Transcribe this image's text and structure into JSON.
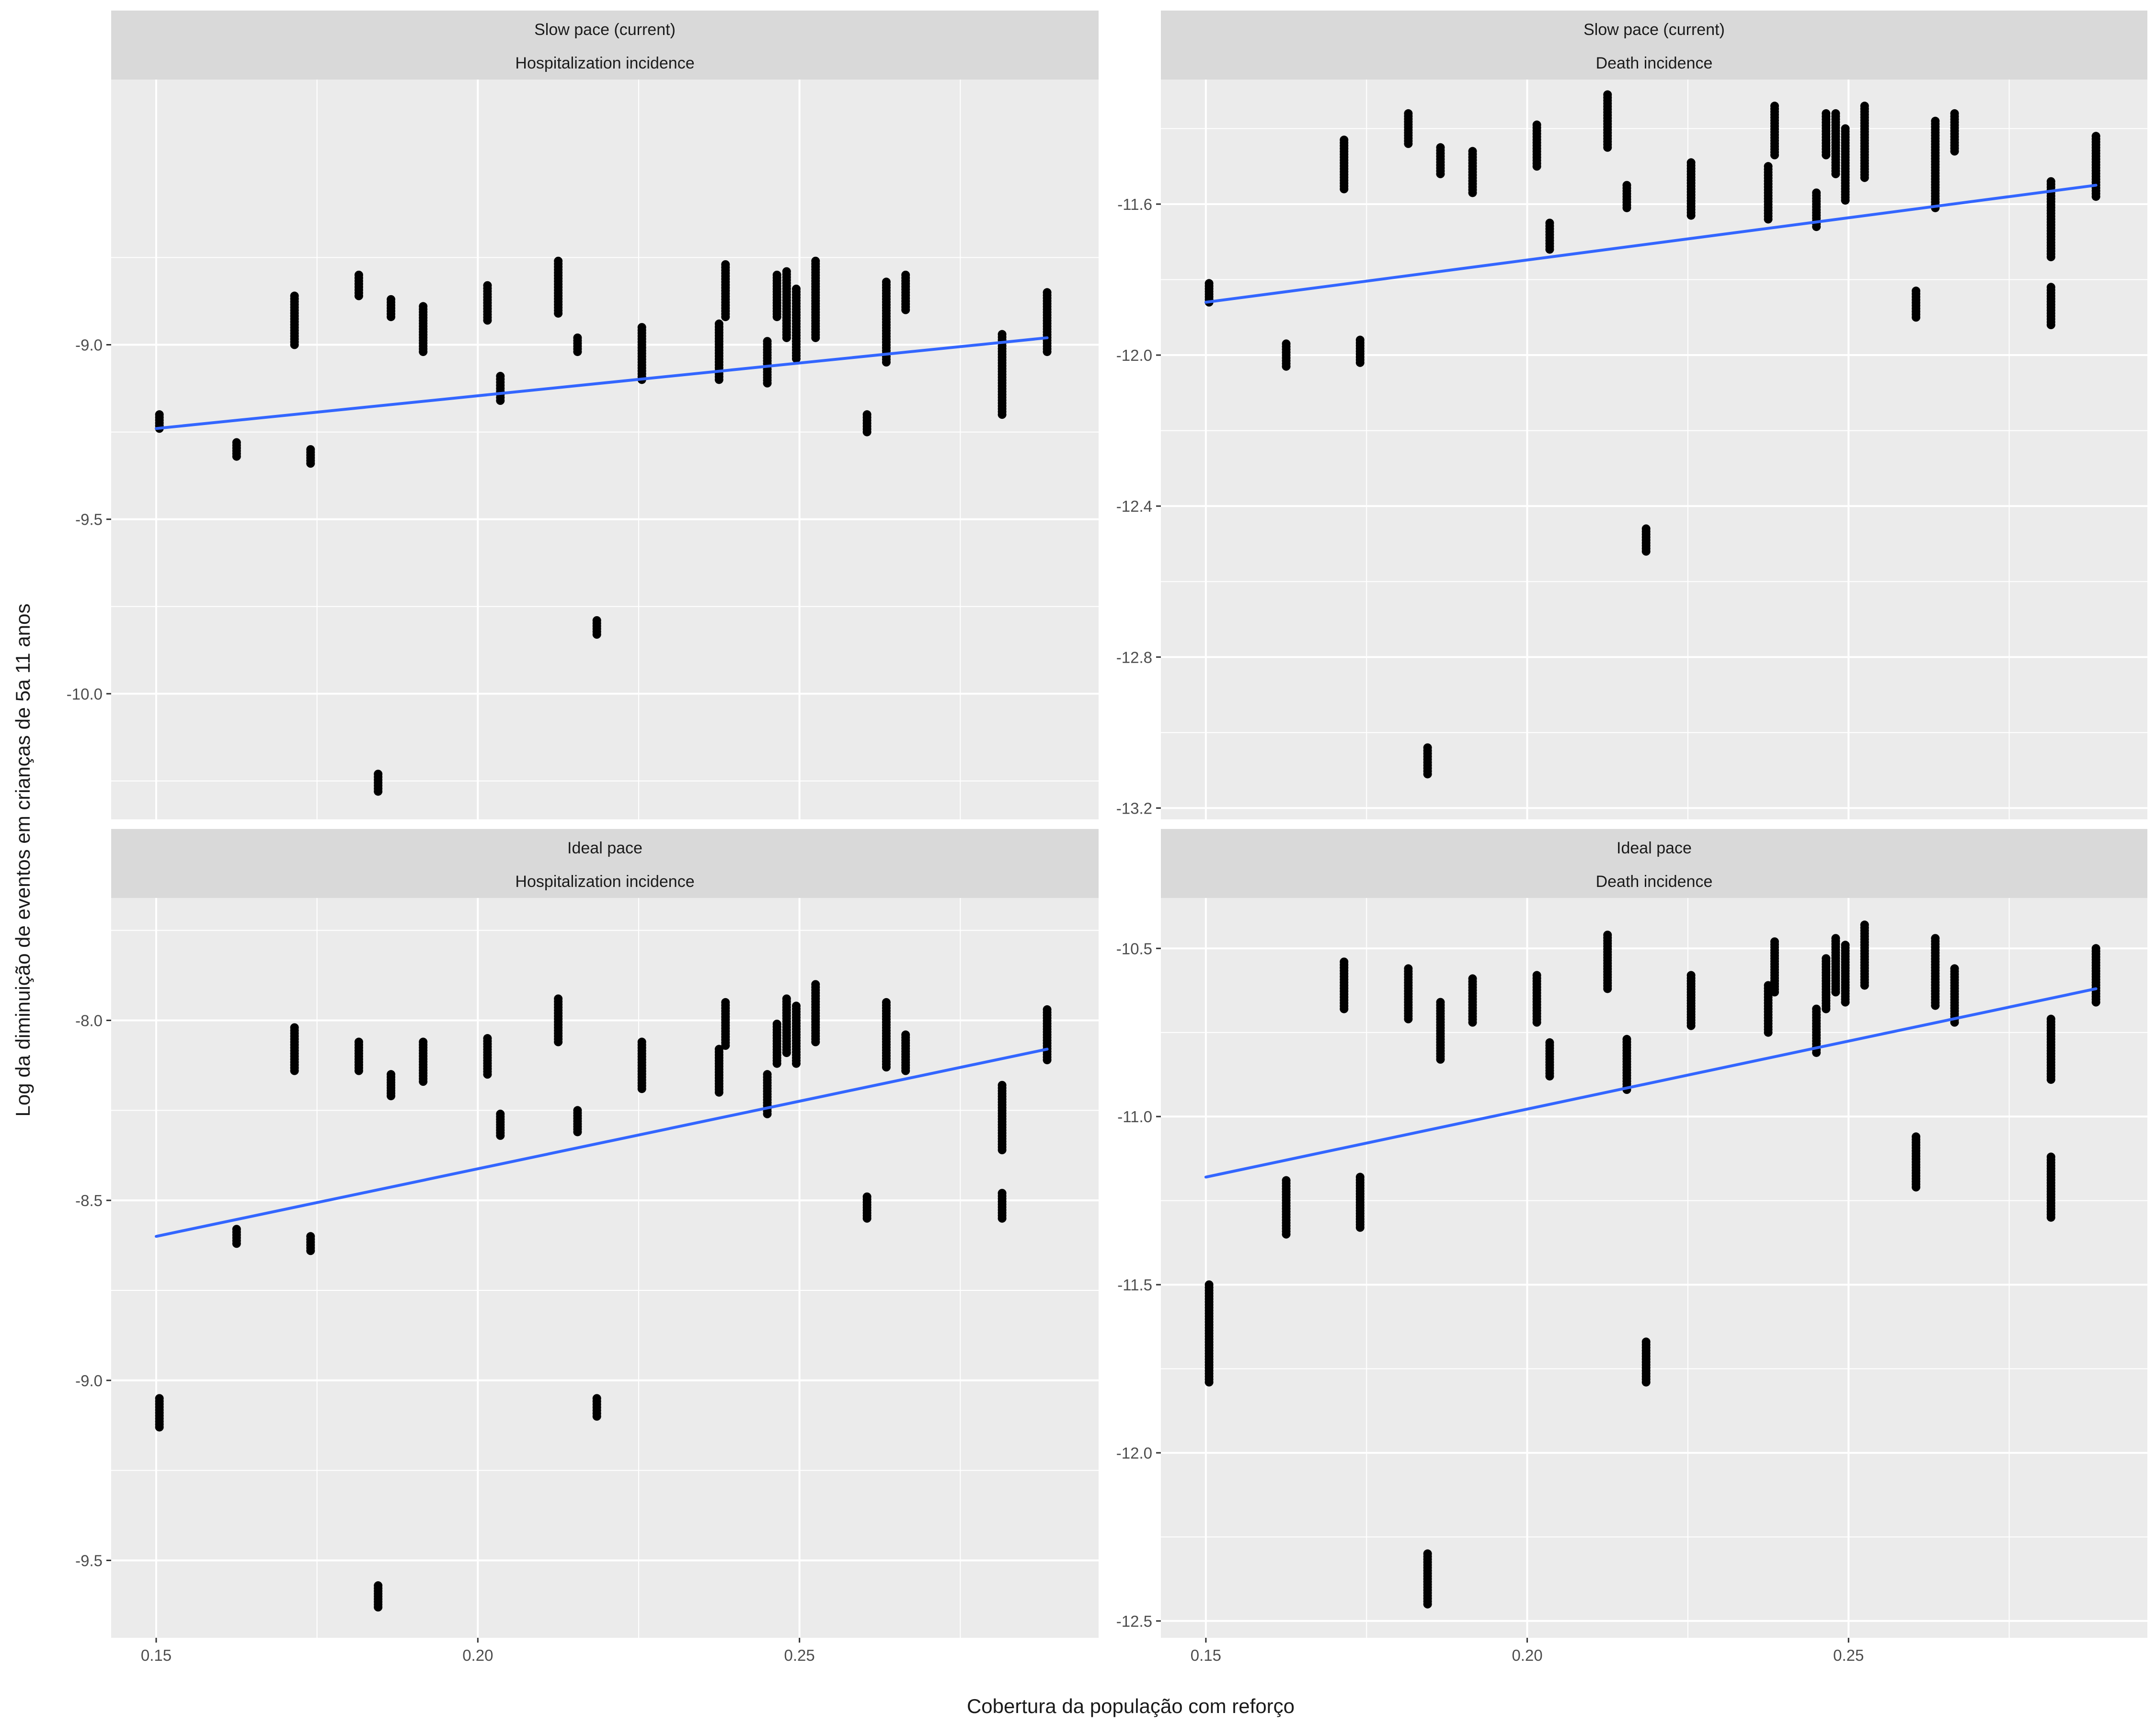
{
  "chart_data": {
    "type": "scatter",
    "xlabel": "Cobertura da população com reforço",
    "ylabel": "Log da diminuição de eventos em crianças de 5a 11 anos",
    "smoothing": "linear fit (blue)",
    "grid": true,
    "xlim": [
      0.143,
      0.2965
    ],
    "xticks": [
      "0.15",
      "0.20",
      "0.25"
    ],
    "xtick_values": [
      0.15,
      0.2,
      0.25
    ],
    "colors": {
      "panel_bg": "#ebebeb",
      "strip_bg": "#d9d9d9",
      "grid": "#ffffff",
      "points": "#000000",
      "fit_line": "#3366ff",
      "text": "#1a1a1a",
      "tick_text": "#4d4d4d"
    },
    "facets": [
      {
        "row_label": "Slow pace (current)",
        "col_label": "Hospitalization incidence",
        "ylim": [
          -10.36,
          -8.24
        ],
        "yticks": [
          "-9.0",
          "-9.5",
          "-10.0"
        ],
        "ytick_values": [
          -9.0,
          -9.5,
          -10.0
        ],
        "fit": {
          "x": [
            0.15,
            0.2885
          ],
          "y": [
            -9.24,
            -8.98
          ]
        },
        "point_groups": [
          {
            "x": 0.1505,
            "ymin": -9.24,
            "ymax": -9.2
          },
          {
            "x": 0.1625,
            "ymin": -9.32,
            "ymax": -9.28
          },
          {
            "x": 0.1715,
            "ymin": -9.0,
            "ymax": -8.86
          },
          {
            "x": 0.174,
            "ymin": -9.34,
            "ymax": -9.3
          },
          {
            "x": 0.1815,
            "ymin": -8.86,
            "ymax": -8.8
          },
          {
            "x": 0.1845,
            "ymin": -10.28,
            "ymax": -10.23
          },
          {
            "x": 0.1865,
            "ymin": -8.92,
            "ymax": -8.87
          },
          {
            "x": 0.1915,
            "ymin": -9.02,
            "ymax": -8.89
          },
          {
            "x": 0.2015,
            "ymin": -8.93,
            "ymax": -8.83
          },
          {
            "x": 0.2035,
            "ymin": -9.16,
            "ymax": -9.09
          },
          {
            "x": 0.2125,
            "ymin": -8.91,
            "ymax": -8.76
          },
          {
            "x": 0.2155,
            "ymin": -9.02,
            "ymax": -8.98
          },
          {
            "x": 0.2185,
            "ymin": -9.83,
            "ymax": -9.79
          },
          {
            "x": 0.2255,
            "ymin": -9.1,
            "ymax": -8.95
          },
          {
            "x": 0.2375,
            "ymin": -9.1,
            "ymax": -8.94
          },
          {
            "x": 0.2385,
            "ymin": -8.92,
            "ymax": -8.77
          },
          {
            "x": 0.245,
            "ymin": -9.11,
            "ymax": -8.99
          },
          {
            "x": 0.2465,
            "ymin": -8.92,
            "ymax": -8.8
          },
          {
            "x": 0.248,
            "ymin": -8.98,
            "ymax": -8.79
          },
          {
            "x": 0.2495,
            "ymin": -9.04,
            "ymax": -8.84
          },
          {
            "x": 0.2525,
            "ymin": -8.98,
            "ymax": -8.76
          },
          {
            "x": 0.2605,
            "ymin": -9.25,
            "ymax": -9.2
          },
          {
            "x": 0.2635,
            "ymin": -9.05,
            "ymax": -8.82
          },
          {
            "x": 0.2665,
            "ymin": -8.9,
            "ymax": -8.8
          },
          {
            "x": 0.2815,
            "ymin": -9.2,
            "ymax": -8.97
          },
          {
            "x": 0.2885,
            "ymin": -9.02,
            "ymax": -8.85
          }
        ]
      },
      {
        "row_label": "Slow pace (current)",
        "col_label": "Death incidence",
        "ylim": [
          -13.23,
          -11.27
        ],
        "yticks": [
          "-11.6",
          "-12.0",
          "-12.4",
          "-12.8",
          "-13.2"
        ],
        "ytick_values": [
          -11.6,
          -12.0,
          -12.4,
          -12.8,
          -13.2
        ],
        "fit": {
          "x": [
            0.15,
            0.2885
          ],
          "y": [
            -11.86,
            -11.55
          ]
        },
        "point_groups": [
          {
            "x": 0.1505,
            "ymin": -11.86,
            "ymax": -11.81
          },
          {
            "x": 0.1625,
            "ymin": -12.03,
            "ymax": -11.97
          },
          {
            "x": 0.1715,
            "ymin": -11.56,
            "ymax": -11.43
          },
          {
            "x": 0.174,
            "ymin": -12.02,
            "ymax": -11.96
          },
          {
            "x": 0.1815,
            "ymin": -11.44,
            "ymax": -11.36
          },
          {
            "x": 0.1845,
            "ymin": -13.11,
            "ymax": -13.04
          },
          {
            "x": 0.1865,
            "ymin": -11.52,
            "ymax": -11.45
          },
          {
            "x": 0.1915,
            "ymin": -11.57,
            "ymax": -11.46
          },
          {
            "x": 0.2015,
            "ymin": -11.5,
            "ymax": -11.39
          },
          {
            "x": 0.2035,
            "ymin": -11.72,
            "ymax": -11.65
          },
          {
            "x": 0.2125,
            "ymin": -11.45,
            "ymax": -11.31
          },
          {
            "x": 0.2155,
            "ymin": -11.61,
            "ymax": -11.55
          },
          {
            "x": 0.2185,
            "ymin": -12.52,
            "ymax": -12.46
          },
          {
            "x": 0.2255,
            "ymin": -11.63,
            "ymax": -11.49
          },
          {
            "x": 0.2375,
            "ymin": -11.64,
            "ymax": -11.5
          },
          {
            "x": 0.2385,
            "ymin": -11.47,
            "ymax": -11.34
          },
          {
            "x": 0.245,
            "ymin": -11.66,
            "ymax": -11.57
          },
          {
            "x": 0.2465,
            "ymin": -11.47,
            "ymax": -11.36
          },
          {
            "x": 0.248,
            "ymin": -11.52,
            "ymax": -11.36
          },
          {
            "x": 0.2495,
            "ymin": -11.59,
            "ymax": -11.4
          },
          {
            "x": 0.2525,
            "ymin": -11.53,
            "ymax": -11.34
          },
          {
            "x": 0.2605,
            "ymin": -11.9,
            "ymax": -11.83
          },
          {
            "x": 0.2635,
            "ymin": -11.61,
            "ymax": -11.38
          },
          {
            "x": 0.2665,
            "ymin": -11.46,
            "ymax": -11.36
          },
          {
            "x": 0.2815,
            "ymin": -11.92,
            "ymax": -11.82
          },
          {
            "x": 0.2815,
            "ymin": -11.74,
            "ymax": -11.54
          },
          {
            "x": 0.2885,
            "ymin": -11.58,
            "ymax": -11.42
          }
        ]
      },
      {
        "row_label": "Ideal pace",
        "col_label": "Hospitalization incidence",
        "ylim": [
          -9.715,
          -7.66
        ],
        "yticks": [
          "-8.0",
          "-8.5",
          "-9.0",
          "-9.5"
        ],
        "ytick_values": [
          -8.0,
          -8.5,
          -9.0,
          -9.5
        ],
        "fit": {
          "x": [
            0.15,
            0.2885
          ],
          "y": [
            -8.6,
            -8.08
          ]
        },
        "point_groups": [
          {
            "x": 0.1505,
            "ymin": -9.13,
            "ymax": -9.05
          },
          {
            "x": 0.1625,
            "ymin": -8.62,
            "ymax": -8.58
          },
          {
            "x": 0.1715,
            "ymin": -8.14,
            "ymax": -8.02
          },
          {
            "x": 0.174,
            "ymin": -8.64,
            "ymax": -8.6
          },
          {
            "x": 0.1815,
            "ymin": -8.14,
            "ymax": -8.06
          },
          {
            "x": 0.1845,
            "ymin": -9.63,
            "ymax": -9.57
          },
          {
            "x": 0.1865,
            "ymin": -8.21,
            "ymax": -8.15
          },
          {
            "x": 0.1915,
            "ymin": -8.17,
            "ymax": -8.06
          },
          {
            "x": 0.2015,
            "ymin": -8.15,
            "ymax": -8.05
          },
          {
            "x": 0.2035,
            "ymin": -8.32,
            "ymax": -8.26
          },
          {
            "x": 0.2125,
            "ymin": -8.06,
            "ymax": -7.94
          },
          {
            "x": 0.2155,
            "ymin": -8.31,
            "ymax": -8.25
          },
          {
            "x": 0.2185,
            "ymin": -9.1,
            "ymax": -9.05
          },
          {
            "x": 0.2255,
            "ymin": -8.19,
            "ymax": -8.06
          },
          {
            "x": 0.2375,
            "ymin": -8.2,
            "ymax": -8.08
          },
          {
            "x": 0.2385,
            "ymin": -8.07,
            "ymax": -7.95
          },
          {
            "x": 0.245,
            "ymin": -8.26,
            "ymax": -8.15
          },
          {
            "x": 0.2465,
            "ymin": -8.12,
            "ymax": -8.01
          },
          {
            "x": 0.248,
            "ymin": -8.09,
            "ymax": -7.94
          },
          {
            "x": 0.2495,
            "ymin": -8.12,
            "ymax": -7.96
          },
          {
            "x": 0.2525,
            "ymin": -8.06,
            "ymax": -7.9
          },
          {
            "x": 0.2605,
            "ymin": -8.55,
            "ymax": -8.49
          },
          {
            "x": 0.2635,
            "ymin": -8.13,
            "ymax": -7.95
          },
          {
            "x": 0.2665,
            "ymin": -8.14,
            "ymax": -8.04
          },
          {
            "x": 0.2815,
            "ymin": -8.55,
            "ymax": -8.48
          },
          {
            "x": 0.2815,
            "ymin": -8.36,
            "ymax": -8.18
          },
          {
            "x": 0.2885,
            "ymin": -8.11,
            "ymax": -7.97
          }
        ]
      },
      {
        "row_label": "Ideal pace",
        "col_label": "Death incidence",
        "ylim": [
          -12.55,
          -10.35
        ],
        "yticks": [
          "-10.5",
          "-11.0",
          "-11.5",
          "-12.0",
          "-12.5"
        ],
        "ytick_values": [
          -10.5,
          -11.0,
          -11.5,
          -12.0,
          -12.5
        ],
        "fit": {
          "x": [
            0.15,
            0.2885
          ],
          "y": [
            -11.18,
            -10.62
          ]
        },
        "point_groups": [
          {
            "x": 0.1505,
            "ymin": -11.79,
            "ymax": -11.5
          },
          {
            "x": 0.1625,
            "ymin": -11.35,
            "ymax": -11.19
          },
          {
            "x": 0.1715,
            "ymin": -10.68,
            "ymax": -10.54
          },
          {
            "x": 0.174,
            "ymin": -11.33,
            "ymax": -11.18
          },
          {
            "x": 0.1815,
            "ymin": -10.71,
            "ymax": -10.56
          },
          {
            "x": 0.1845,
            "ymin": -12.45,
            "ymax": -12.3
          },
          {
            "x": 0.1865,
            "ymin": -10.83,
            "ymax": -10.66
          },
          {
            "x": 0.1915,
            "ymin": -10.72,
            "ymax": -10.59
          },
          {
            "x": 0.2015,
            "ymin": -10.72,
            "ymax": -10.58
          },
          {
            "x": 0.2035,
            "ymin": -10.88,
            "ymax": -10.78
          },
          {
            "x": 0.2125,
            "ymin": -10.62,
            "ymax": -10.46
          },
          {
            "x": 0.2155,
            "ymin": -10.92,
            "ymax": -10.77
          },
          {
            "x": 0.2185,
            "ymin": -11.79,
            "ymax": -11.67
          },
          {
            "x": 0.2255,
            "ymin": -10.73,
            "ymax": -10.58
          },
          {
            "x": 0.2375,
            "ymin": -10.75,
            "ymax": -10.61
          },
          {
            "x": 0.2385,
            "ymin": -10.63,
            "ymax": -10.48
          },
          {
            "x": 0.245,
            "ymin": -10.81,
            "ymax": -10.68
          },
          {
            "x": 0.2465,
            "ymin": -10.68,
            "ymax": -10.53
          },
          {
            "x": 0.248,
            "ymin": -10.63,
            "ymax": -10.47
          },
          {
            "x": 0.2495,
            "ymin": -10.66,
            "ymax": -10.49
          },
          {
            "x": 0.2525,
            "ymin": -10.61,
            "ymax": -10.43
          },
          {
            "x": 0.2605,
            "ymin": -11.21,
            "ymax": -11.06
          },
          {
            "x": 0.2635,
            "ymin": -10.67,
            "ymax": -10.47
          },
          {
            "x": 0.2665,
            "ymin": -10.72,
            "ymax": -10.56
          },
          {
            "x": 0.2815,
            "ymin": -11.3,
            "ymax": -11.12
          },
          {
            "x": 0.2815,
            "ymin": -10.89,
            "ymax": -10.71
          },
          {
            "x": 0.2885,
            "ymin": -10.66,
            "ymax": -10.5
          }
        ]
      }
    ]
  }
}
